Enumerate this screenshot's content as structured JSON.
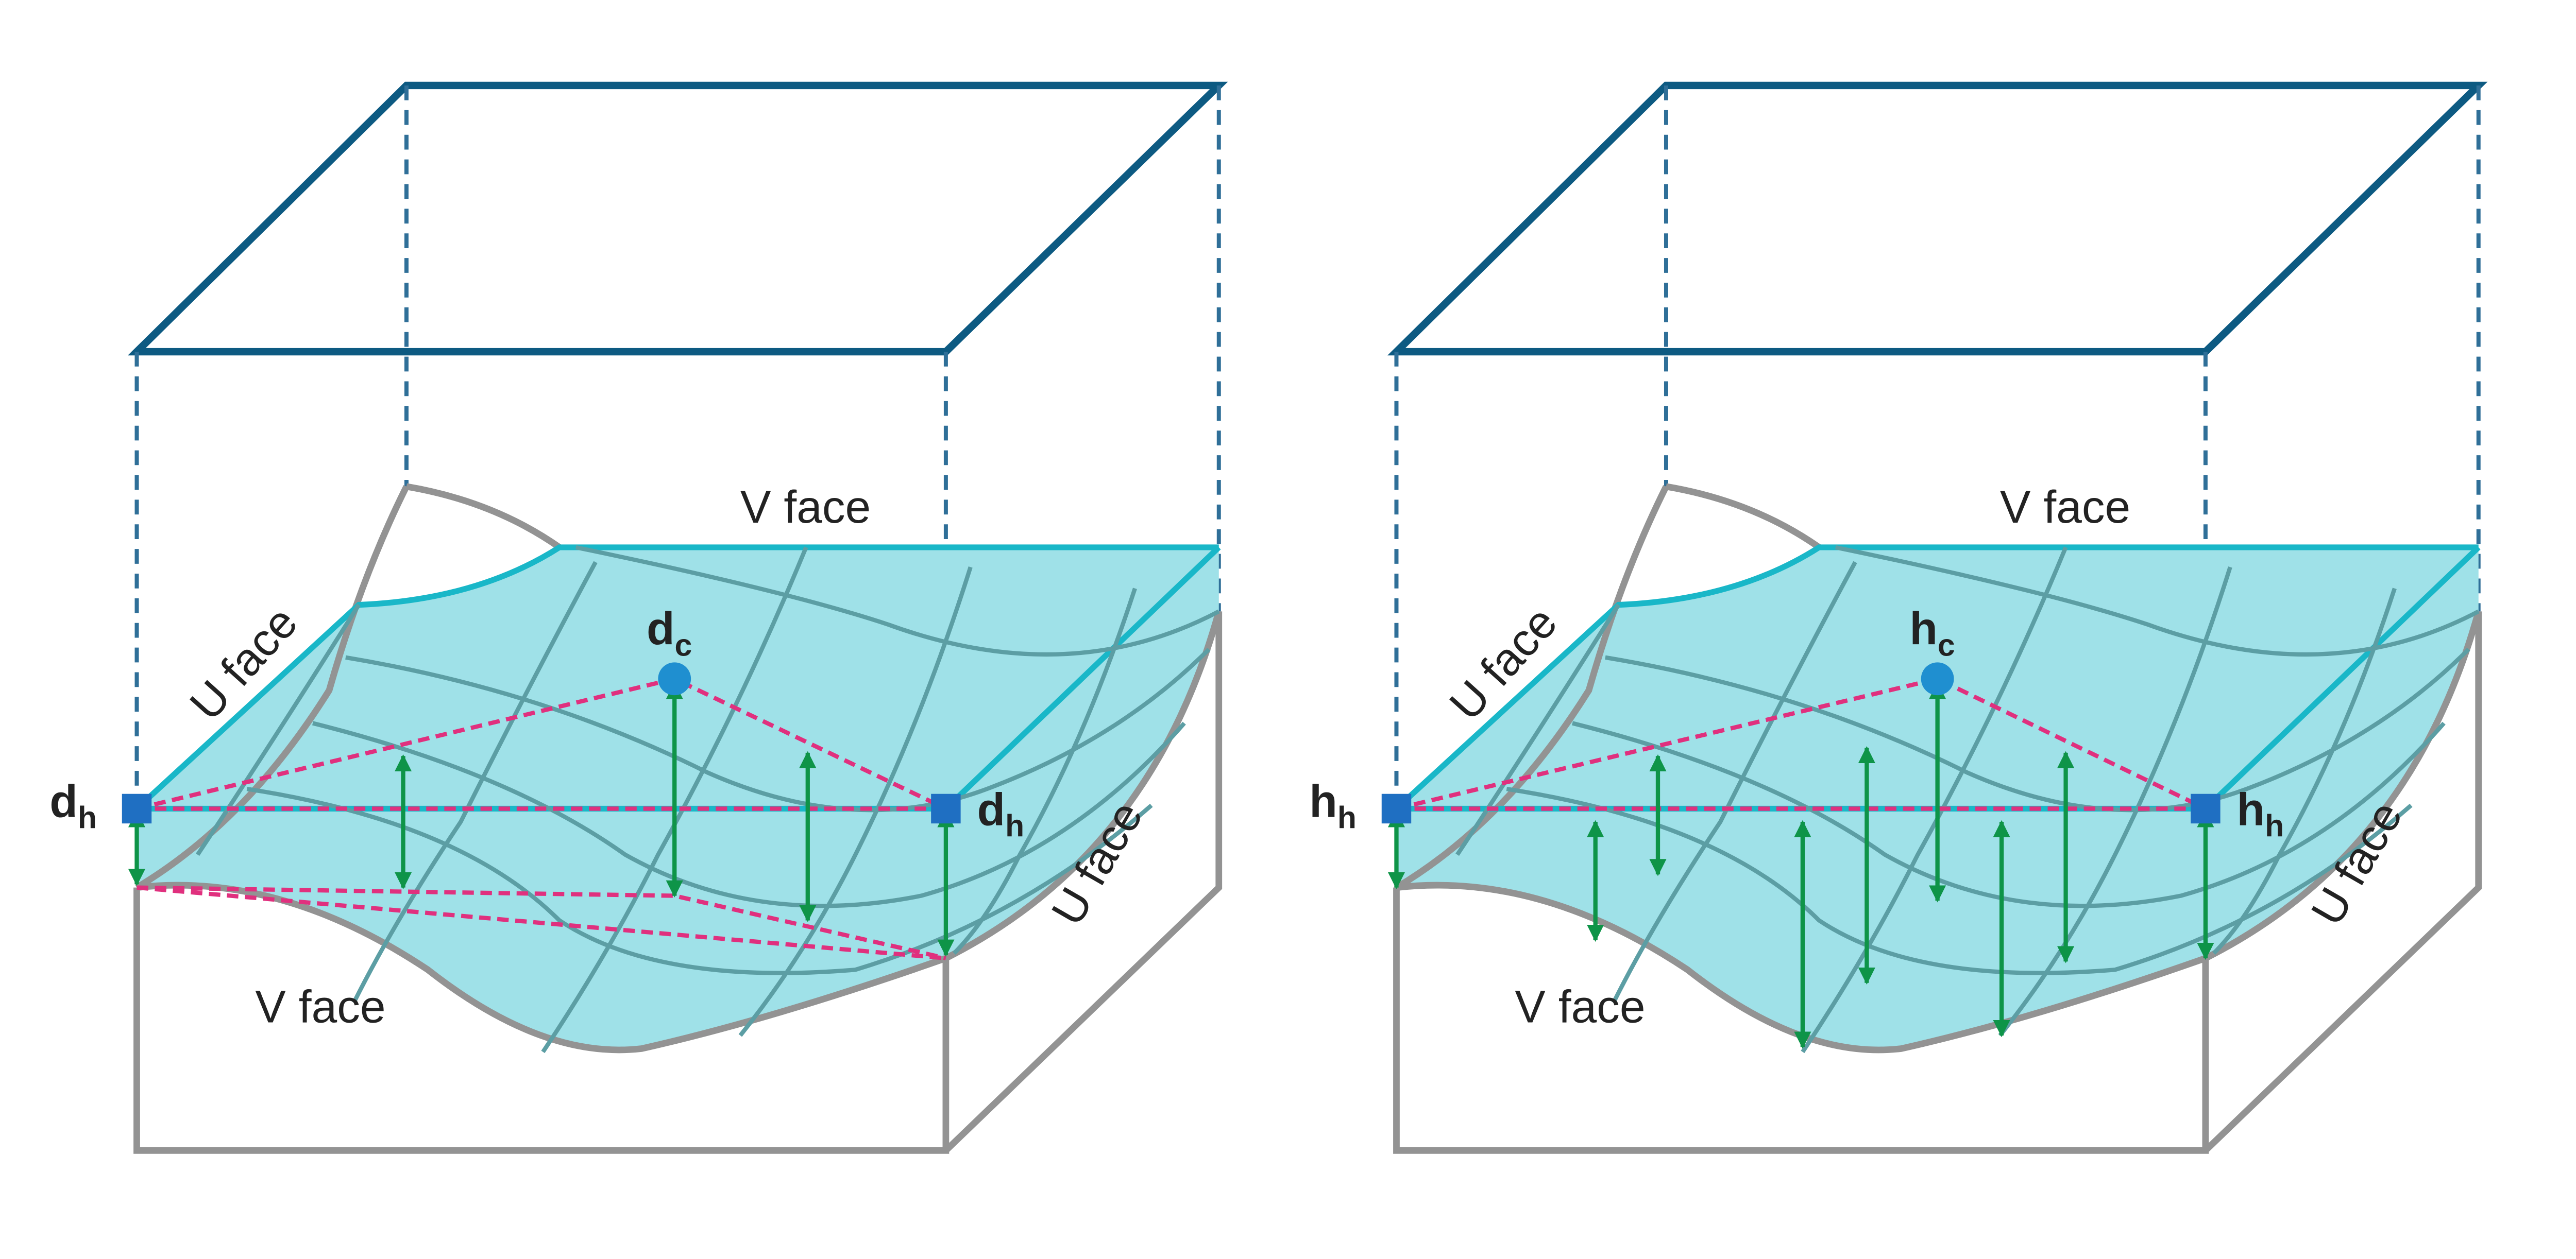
{
  "colors": {
    "box": "#0d5a82",
    "surface": "#9fe1e8",
    "surface_edge": "#19b7c8",
    "grid": "#5c9ea4",
    "link": "#e0307e",
    "arrow": "#0e9448",
    "marker": "#1f6fc2",
    "frame": "#939393"
  },
  "panels": [
    {
      "v_face_top": "V face",
      "u_face_left": "U face",
      "v_face_bottom": "V face",
      "u_face_right": "U face",
      "corner_symbol": "d",
      "corner_sub": "h",
      "center_symbol": "d",
      "center_sub": "c"
    },
    {
      "v_face_top": "V face",
      "u_face_left": "U face",
      "v_face_bottom": "V face",
      "u_face_right": "U face",
      "corner_symbol": "h",
      "corner_sub": "h",
      "center_symbol": "h",
      "center_sub": "c"
    }
  ]
}
